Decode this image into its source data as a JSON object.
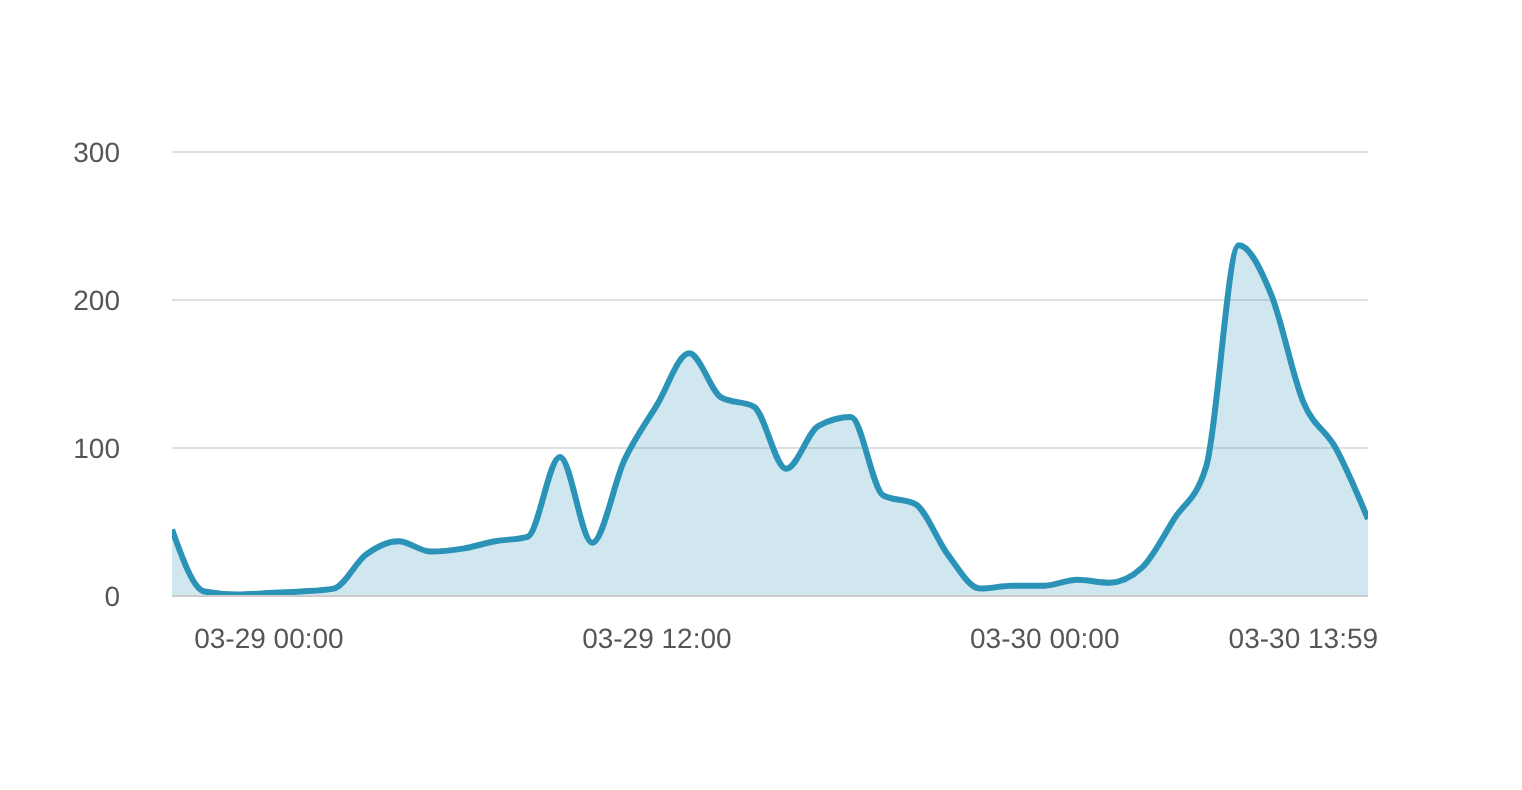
{
  "chart_data": {
    "type": "area",
    "categories": [
      null,
      null,
      null,
      "03-29 00:00",
      null,
      null,
      null,
      null,
      null,
      null,
      null,
      null,
      null,
      null,
      null,
      "03-29 12:00",
      null,
      null,
      null,
      null,
      null,
      null,
      null,
      null,
      null,
      null,
      null,
      "03-30 00:00",
      null,
      null,
      null,
      null,
      null,
      null,
      null,
      "03-30 13:59",
      null,
      null
    ],
    "series": [
      {
        "color": "#2a93b7",
        "values": [
          45,
          3,
          1,
          2,
          3,
          5,
          28,
          37,
          30,
          32,
          37,
          40,
          94,
          36,
          92,
          129,
          164,
          134,
          128,
          86,
          115,
          121,
          68,
          62,
          28,
          5,
          7,
          7,
          11,
          9,
          19,
          52,
          88,
          237,
          204,
          131,
          100,
          52
        ]
      }
    ],
    "ylim": [
      0,
      300
    ],
    "yticks": [
      0,
      100,
      200,
      300
    ],
    "grid": "y",
    "legend": false
  }
}
